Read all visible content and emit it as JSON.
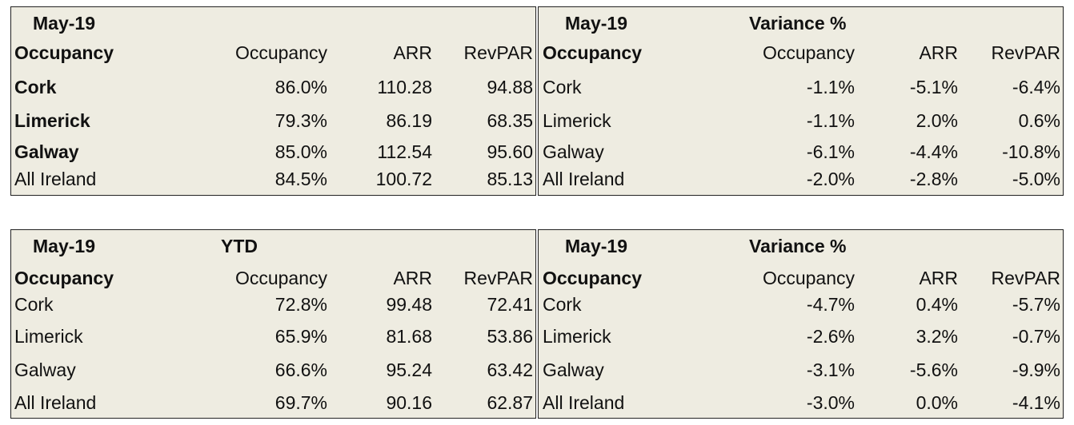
{
  "top": {
    "left": {
      "title": "May-19",
      "header": [
        "Occupancy",
        "Occupancy",
        "ARR",
        "RevPAR"
      ],
      "rows": [
        [
          "Cork",
          "86.0%",
          "110.28",
          "94.88"
        ],
        [
          "Limerick",
          "79.3%",
          "86.19",
          "68.35"
        ],
        [
          "Galway",
          "85.0%",
          "112.54",
          "95.60"
        ],
        [
          "All Ireland",
          "84.5%",
          "100.72",
          "85.13"
        ]
      ]
    },
    "right": {
      "title": "May-19",
      "subtitle": "Variance %",
      "header": [
        "Occupancy",
        "Occupancy",
        "ARR",
        "RevPAR"
      ],
      "rows": [
        [
          "Cork",
          "-1.1%",
          "-5.1%",
          "-6.4%"
        ],
        [
          "Limerick",
          "-1.1%",
          "2.0%",
          "0.6%"
        ],
        [
          "Galway",
          "-6.1%",
          "-4.4%",
          "-10.8%"
        ],
        [
          "All Ireland",
          "-2.0%",
          "-2.8%",
          "-5.0%"
        ]
      ]
    }
  },
  "bottom": {
    "left": {
      "title": "May-19",
      "subtitle": "YTD",
      "header": [
        "Occupancy",
        "Occupancy",
        "ARR",
        "RevPAR"
      ],
      "rows": [
        [
          "Cork",
          "72.8%",
          "99.48",
          "72.41"
        ],
        [
          "Limerick",
          "65.9%",
          "81.68",
          "53.86"
        ],
        [
          "Galway",
          "66.6%",
          "95.24",
          "63.42"
        ],
        [
          "All Ireland",
          "69.7%",
          "90.16",
          "62.87"
        ]
      ]
    },
    "right": {
      "title": "May-19",
      "subtitle": "Variance %",
      "header": [
        "Occupancy",
        "Occupancy",
        "ARR",
        "RevPAR"
      ],
      "rows": [
        [
          "Cork",
          "-4.7%",
          "0.4%",
          "-5.7%"
        ],
        [
          "Limerick",
          "-2.6%",
          "3.2%",
          "-0.7%"
        ],
        [
          "Galway",
          "-3.1%",
          "-5.6%",
          "-9.9%"
        ],
        [
          "All Ireland",
          "-3.0%",
          "0.0%",
          "-4.1%"
        ]
      ]
    }
  }
}
